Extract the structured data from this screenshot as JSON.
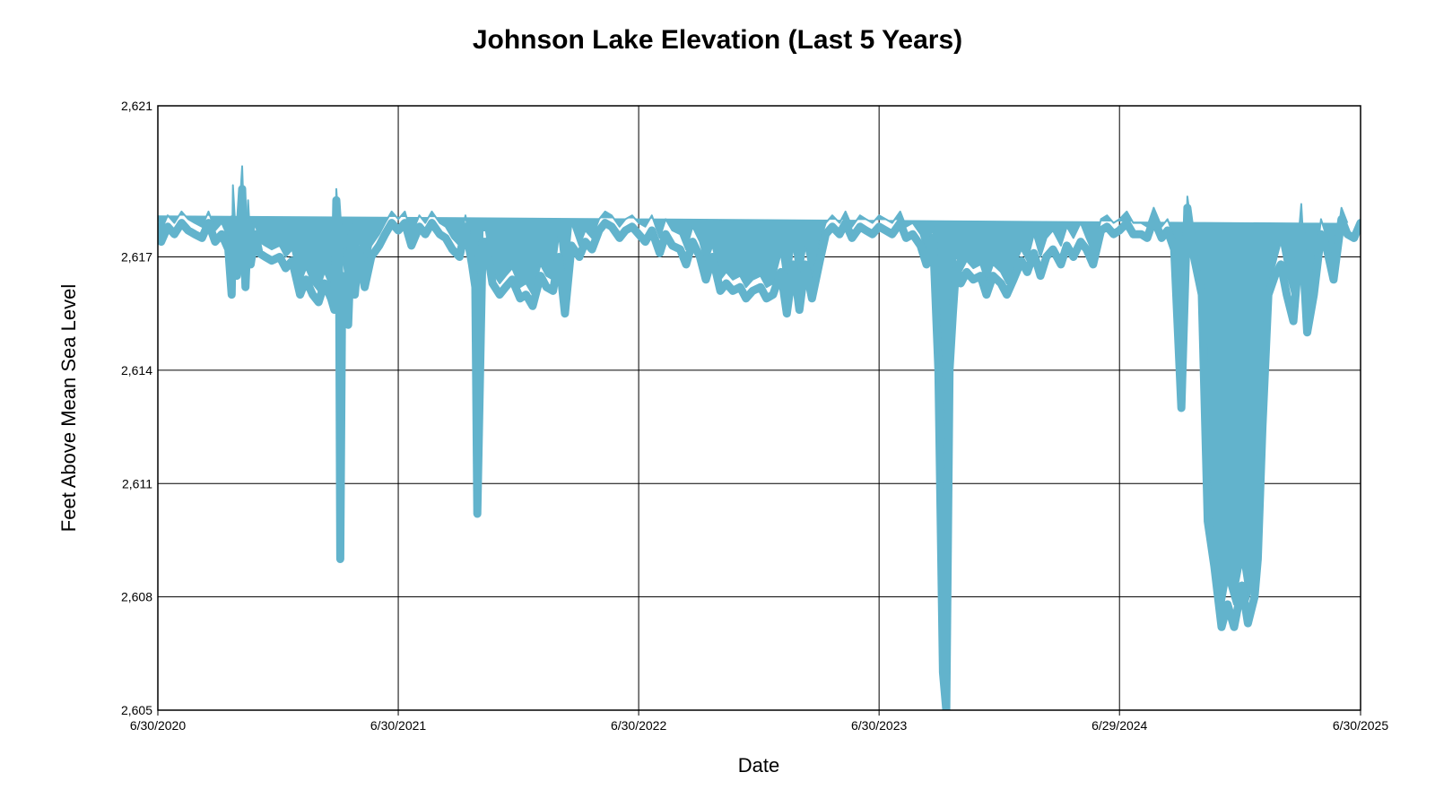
{
  "chart_data": {
    "type": "line",
    "title": "Johnson Lake Elevation (Last 5 Years)",
    "xlabel": "Date",
    "ylabel": "Feet Above Mean Sea Level",
    "ylim": [
      2605,
      2621
    ],
    "xlim": [
      "2020-06-30",
      "2025-06-30"
    ],
    "y_ticks": [
      2605,
      2608,
      2611,
      2614,
      2617,
      2621
    ],
    "y_tick_labels": [
      "2,605",
      "2,608",
      "2,611",
      "2,614",
      "2,617",
      "2,621"
    ],
    "x_ticks": [
      "2020-06-30",
      "2021-06-30",
      "2022-06-30",
      "2023-06-30",
      "2024-06-29",
      "2025-06-30"
    ],
    "x_tick_labels": [
      "6/30/2020",
      "6/30/2021",
      "6/30/2022",
      "6/30/2023",
      "6/29/2024",
      "6/30/2025"
    ],
    "grid": true,
    "line_color": "#62b3cc",
    "series": [
      {
        "x": [
          "2020-06-30",
          "2020-07-05",
          "2020-07-15",
          "2020-07-25",
          "2020-08-05",
          "2020-08-15",
          "2020-08-25",
          "2020-09-05",
          "2020-09-15",
          "2020-09-25",
          "2020-10-05",
          "2020-10-15",
          "2020-10-20",
          "2020-10-22",
          "2020-10-28",
          "2020-11-05",
          "2020-11-10",
          "2020-11-14",
          "2020-11-18",
          "2020-11-25",
          "2020-12-01",
          "2020-12-10",
          "2020-12-20",
          "2021-01-01",
          "2021-01-10",
          "2021-01-20",
          "2021-02-01",
          "2021-02-10",
          "2021-02-20",
          "2021-03-01",
          "2021-03-10",
          "2021-03-20",
          "2021-03-25",
          "2021-03-28",
          "2021-04-01",
          "2021-04-03",
          "2021-04-06",
          "2021-04-10",
          "2021-04-15",
          "2021-04-20",
          "2021-04-25",
          "2021-05-01",
          "2021-05-10",
          "2021-05-20",
          "2021-06-01",
          "2021-06-10",
          "2021-06-20",
          "2021-06-30",
          "2021-07-10",
          "2021-07-20",
          "2021-08-01",
          "2021-08-10",
          "2021-08-20",
          "2021-09-01",
          "2021-09-10",
          "2021-09-20",
          "2021-10-01",
          "2021-10-10",
          "2021-10-20",
          "2021-10-25",
          "2021-10-28",
          "2021-11-05",
          "2021-11-10",
          "2021-11-20",
          "2021-12-01",
          "2021-12-10",
          "2021-12-20",
          "2022-01-01",
          "2022-01-10",
          "2022-01-20",
          "2022-02-01",
          "2022-02-10",
          "2022-02-20",
          "2022-03-01",
          "2022-03-10",
          "2022-03-20",
          "2022-04-01",
          "2022-04-10",
          "2022-04-20",
          "2022-05-01",
          "2022-05-10",
          "2022-05-20",
          "2022-06-01",
          "2022-06-10",
          "2022-06-20",
          "2022-06-30",
          "2022-07-10",
          "2022-07-20",
          "2022-08-01",
          "2022-08-10",
          "2022-08-20",
          "2022-09-01",
          "2022-09-10",
          "2022-09-20",
          "2022-10-01",
          "2022-10-10",
          "2022-10-20",
          "2022-11-01",
          "2022-11-10",
          "2022-11-20",
          "2022-12-01",
          "2022-12-10",
          "2022-12-20",
          "2023-01-01",
          "2023-01-10",
          "2023-01-20",
          "2023-02-01",
          "2023-02-10",
          "2023-02-20",
          "2023-03-01",
          "2023-03-10",
          "2023-03-20",
          "2023-04-01",
          "2023-04-10",
          "2023-04-20",
          "2023-05-01",
          "2023-05-10",
          "2023-05-20",
          "2023-06-01",
          "2023-06-10",
          "2023-06-20",
          "2023-06-30",
          "2023-07-10",
          "2023-07-20",
          "2023-08-01",
          "2023-08-10",
          "2023-08-20",
          "2023-09-01",
          "2023-09-10",
          "2023-09-20",
          "2023-09-28",
          "2023-10-05",
          "2023-10-10",
          "2023-10-15",
          "2023-10-20",
          "2023-10-25",
          "2023-11-01",
          "2023-11-10",
          "2023-11-20",
          "2023-12-01",
          "2023-12-10",
          "2023-12-20",
          "2024-01-01",
          "2024-01-10",
          "2024-01-20",
          "2024-02-01",
          "2024-02-10",
          "2024-02-20",
          "2024-03-01",
          "2024-03-10",
          "2024-03-20",
          "2024-04-01",
          "2024-04-10",
          "2024-04-20",
          "2024-05-01",
          "2024-05-10",
          "2024-05-20",
          "2024-06-01",
          "2024-06-10",
          "2024-06-20",
          "2024-06-29",
          "2024-07-10",
          "2024-07-20",
          "2024-08-01",
          "2024-08-10",
          "2024-08-20",
          "2024-09-01",
          "2024-09-10",
          "2024-09-20",
          "2024-10-01",
          "2024-10-10",
          "2024-10-20",
          "2024-11-01",
          "2024-11-10",
          "2024-11-20",
          "2024-12-01",
          "2024-12-10",
          "2024-12-20",
          "2025-01-01",
          "2025-01-10",
          "2025-01-20",
          "2025-01-25",
          "2025-02-01",
          "2025-02-10",
          "2025-02-20",
          "2025-03-01",
          "2025-03-10",
          "2025-03-20",
          "2025-04-01",
          "2025-04-10",
          "2025-04-20",
          "2025-05-01",
          "2025-05-10",
          "2025-05-20",
          "2025-06-01",
          "2025-06-10",
          "2025-06-20",
          "2025-06-30"
        ],
        "y": [
          2617.8,
          2617.4,
          2617.8,
          2617.6,
          2617.9,
          2617.7,
          2617.6,
          2617.5,
          2617.9,
          2617.4,
          2617.6,
          2617.2,
          2616.0,
          2618.0,
          2616.5,
          2618.8,
          2616.2,
          2617.9,
          2616.8,
          2617.6,
          2617.1,
          2617.0,
          2616.9,
          2617.0,
          2616.7,
          2616.9,
          2616.0,
          2616.4,
          2616.0,
          2615.8,
          2616.3,
          2615.9,
          2615.6,
          2618.5,
          2617.4,
          2609.0,
          2616.5,
          2616.0,
          2615.2,
          2617.6,
          2616.0,
          2617.2,
          2616.2,
          2617.0,
          2617.3,
          2617.6,
          2617.9,
          2617.7,
          2617.9,
          2617.3,
          2617.8,
          2617.6,
          2617.9,
          2617.6,
          2617.5,
          2617.2,
          2617.0,
          2617.8,
          2616.8,
          2616.2,
          2610.2,
          2617.4,
          2617.4,
          2616.3,
          2616.0,
          2616.2,
          2616.4,
          2615.9,
          2616.0,
          2615.7,
          2616.5,
          2616.2,
          2616.1,
          2617.0,
          2615.5,
          2617.3,
          2617.0,
          2617.4,
          2617.2,
          2617.7,
          2617.9,
          2617.8,
          2617.5,
          2617.7,
          2617.8,
          2617.6,
          2617.4,
          2617.7,
          2617.1,
          2617.6,
          2617.3,
          2617.2,
          2616.8,
          2617.4,
          2617.0,
          2616.4,
          2617.0,
          2616.1,
          2616.3,
          2616.1,
          2616.2,
          2615.9,
          2616.1,
          2616.2,
          2615.9,
          2616.0,
          2616.6,
          2615.5,
          2616.8,
          2615.6,
          2616.8,
          2615.9,
          2616.9,
          2617.6,
          2617.8,
          2617.6,
          2617.9,
          2617.5,
          2617.8,
          2617.7,
          2617.6,
          2617.8,
          2617.7,
          2617.6,
          2617.9,
          2617.5,
          2617.6,
          2617.3,
          2616.8,
          2617.5,
          2614.0,
          2606.0,
          2605.0,
          2614.0,
          2615.5,
          2616.8,
          2616.3,
          2616.6,
          2616.4,
          2616.5,
          2616.0,
          2616.5,
          2616.3,
          2616.0,
          2616.4,
          2616.9,
          2616.6,
          2617.1,
          2616.5,
          2617.0,
          2617.2,
          2616.8,
          2617.3,
          2617.0,
          2617.4,
          2617.2,
          2616.8,
          2617.7,
          2617.8,
          2617.6,
          2617.7,
          2617.9,
          2617.6,
          2617.6,
          2617.5,
          2618.0,
          2617.5,
          2617.7,
          2617.2,
          2613.0,
          2618.3,
          2617.0,
          2616.0,
          2610.0,
          2608.8,
          2607.2,
          2607.8,
          2607.2,
          2608.3,
          2607.3,
          2608.0,
          2609.0,
          2612.5,
          2616.0,
          2616.5,
          2616.8,
          2616.0,
          2615.3,
          2617.8,
          2615.0,
          2616.0,
          2617.6,
          2617.2,
          2616.4,
          2618.0,
          2617.6,
          2617.5,
          2617.9
        ],
        "band": [
          0.3,
          0.3,
          0.3,
          0.3,
          0.3,
          0.3,
          0.3,
          0.3,
          0.3,
          0.3,
          0.3,
          0.3,
          0.3,
          0.9,
          0.6,
          0.6,
          0.6,
          0.6,
          0.5,
          0.3,
          0.3,
          0.3,
          0.3,
          0.3,
          0.3,
          0.3,
          0.3,
          0.3,
          0.3,
          0.3,
          0.3,
          0.3,
          0.3,
          0.3,
          0.3,
          0.2,
          0.6,
          0.6,
          0.7,
          0.3,
          0.5,
          0.3,
          0.3,
          0.3,
          0.3,
          0.3,
          0.3,
          0.3,
          0.3,
          0.3,
          0.3,
          0.3,
          0.3,
          0.3,
          0.3,
          0.3,
          0.3,
          0.3,
          0.3,
          0.3,
          0.2,
          0.3,
          0.3,
          0.3,
          0.3,
          0.3,
          0.3,
          0.3,
          0.3,
          0.3,
          0.3,
          0.3,
          0.3,
          0.6,
          0.6,
          0.6,
          0.3,
          0.3,
          0.3,
          0.3,
          0.3,
          0.3,
          0.3,
          0.3,
          0.3,
          0.3,
          0.4,
          0.4,
          0.4,
          0.4,
          0.4,
          0.4,
          0.4,
          0.4,
          0.4,
          0.4,
          0.3,
          0.3,
          0.3,
          0.3,
          0.3,
          0.3,
          0.3,
          0.3,
          0.3,
          0.3,
          0.5,
          0.5,
          0.5,
          0.5,
          0.5,
          0.5,
          0.5,
          0.3,
          0.3,
          0.3,
          0.3,
          0.3,
          0.3,
          0.3,
          0.3,
          0.3,
          0.3,
          0.3,
          0.3,
          0.3,
          0.3,
          0.3,
          0.3,
          0.3,
          0.2,
          0.2,
          0.2,
          0.2,
          0.5,
          0.3,
          0.3,
          0.3,
          0.3,
          0.3,
          0.3,
          0.3,
          0.3,
          0.3,
          0.3,
          0.3,
          0.3,
          0.5,
          0.5,
          0.5,
          0.5,
          0.5,
          0.5,
          0.5,
          0.5,
          0.3,
          0.3,
          0.3,
          0.3,
          0.3,
          0.3,
          0.3,
          0.3,
          0.3,
          0.3,
          0.3,
          0.3,
          0.3,
          0.3,
          0.4,
          0.3,
          0.3,
          0.3,
          0.3,
          0.3,
          0.3,
          0.6,
          0.6,
          0.6,
          0.6,
          0.5,
          0.3,
          0.3,
          0.3,
          0.3,
          0.6,
          0.6,
          0.6,
          0.6,
          0.6,
          0.4,
          0.4,
          0.3,
          0.3,
          0.3,
          0.3
        ]
      }
    ]
  }
}
